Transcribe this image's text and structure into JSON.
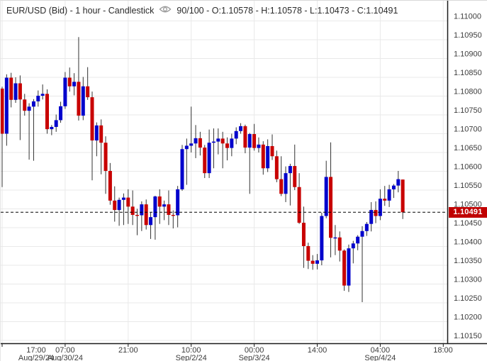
{
  "title": {
    "text": "EUR/USD (Bid) - 1 hour - Candlestick",
    "stats": "90/100 - O:1.10578 - H:1.10578 - L:1.10473 - C:1.10491",
    "eye_icon": "visibility-eye"
  },
  "colors": {
    "up": "#0202cc",
    "down": "#c80000",
    "wick": "#333333",
    "grid": "#e9e9e9",
    "axis": "#1a1a1a",
    "tick_text": "#3c3c3c",
    "tag_bg": "#c00000",
    "tag_text": "#ffffff",
    "dashed_line": "#000000"
  },
  "chart_data": {
    "type": "candlestick",
    "instrument": "EUR/USD (Bid)",
    "timeframe": "1 hour",
    "visible_counter": "90/100",
    "last_ohlc": {
      "open": 1.10578,
      "high": 1.10578,
      "low": 1.10473,
      "close": 1.10491
    },
    "price_marker": {
      "value": 1.10491,
      "label": "1.10491"
    },
    "ylim": [
      1.1015,
      1.11
    ],
    "grid": true,
    "y_ticks": [
      "1.11000",
      "1.10950",
      "1.10900",
      "1.10850",
      "1.10800",
      "1.10750",
      "1.10700",
      "1.10650",
      "1.10600",
      "1.10550",
      "1.10500",
      "1.10450",
      "1.10400",
      "1.10350",
      "1.10300",
      "1.10250",
      "1.10200",
      "1.10150"
    ],
    "x_ticks": [
      {
        "slot": 0,
        "time": "17:00",
        "date": "Aug/29/24"
      },
      {
        "slot": 14,
        "time": "07:00",
        "date": "Aug/30/24"
      },
      {
        "slot": 28,
        "time": "21:00",
        "date": ""
      },
      {
        "slot": 42,
        "time": "10:00",
        "date": "Sep/2/24"
      },
      {
        "slot": 56,
        "time": "00:00",
        "date": "Sep/3/24"
      },
      {
        "slot": 70,
        "time": "14:00",
        "date": ""
      },
      {
        "slot": 84,
        "time": "04:00",
        "date": "Sep/4/24"
      },
      {
        "slot": 98,
        "time": "18:00",
        "date": ""
      }
    ],
    "total_slots": 100,
    "candles_ohlc": [
      [
        1.1082,
        1.10825,
        1.10558,
        1.107
      ],
      [
        1.107,
        1.10858,
        1.10668,
        1.10849
      ],
      [
        1.10849,
        1.10862,
        1.1077,
        1.1079
      ],
      [
        1.1079,
        1.1085,
        1.10782,
        1.10834
      ],
      [
        1.10834,
        1.10855,
        1.10683,
        1.10791
      ],
      [
        1.10791,
        1.10806,
        1.10748,
        1.10761
      ],
      [
        1.10761,
        1.10781,
        1.10631,
        1.10772
      ],
      [
        1.10772,
        1.10792,
        1.10628,
        1.10786
      ],
      [
        1.10786,
        1.10815,
        1.10772,
        1.10801
      ],
      [
        1.10801,
        1.10831,
        1.10791,
        1.10806
      ],
      [
        1.10806,
        1.10818,
        1.107,
        1.10712
      ],
      [
        1.10712,
        1.10723,
        1.10696,
        1.10718
      ],
      [
        1.10718,
        1.10751,
        1.10705,
        1.10736
      ],
      [
        1.10736,
        1.10785,
        1.10729,
        1.10773
      ],
      [
        1.10773,
        1.10864,
        1.10766,
        1.10849
      ],
      [
        1.10849,
        1.10876,
        1.10812,
        1.10826
      ],
      [
        1.10826,
        1.10861,
        1.10802,
        1.10838
      ],
      [
        1.10838,
        1.10957,
        1.10735,
        1.10748
      ],
      [
        1.10748,
        1.10851,
        1.10736,
        1.10826
      ],
      [
        1.10826,
        1.10877,
        1.1079,
        1.10797
      ],
      [
        1.10797,
        1.10812,
        1.10576,
        1.10682
      ],
      [
        1.10682,
        1.1073,
        1.1064,
        1.10722
      ],
      [
        1.10722,
        1.10738,
        1.10592,
        1.10676
      ],
      [
        1.10676,
        1.10693,
        1.1054,
        1.10601
      ],
      [
        1.10601,
        1.10622,
        1.10511,
        1.10522
      ],
      [
        1.10522,
        1.1056,
        1.10466,
        1.10497
      ],
      [
        1.10497,
        1.1053,
        1.10455,
        1.10524
      ],
      [
        1.10524,
        1.10541,
        1.10457,
        1.1053
      ],
      [
        1.1053,
        1.10552,
        1.1046,
        1.10506
      ],
      [
        1.10506,
        1.10549,
        1.10457,
        1.10484
      ],
      [
        1.10484,
        1.105,
        1.1043,
        1.10483
      ],
      [
        1.10483,
        1.1052,
        1.10441,
        1.10512
      ],
      [
        1.10512,
        1.10525,
        1.10445,
        1.10457
      ],
      [
        1.10457,
        1.1049,
        1.1042,
        1.10478
      ],
      [
        1.10478,
        1.10535,
        1.10418,
        1.10533
      ],
      [
        1.10533,
        1.10552,
        1.1046,
        1.10506
      ],
      [
        1.10506,
        1.10522,
        1.1047,
        1.10512
      ],
      [
        1.10512,
        1.10549,
        1.10457,
        1.10484
      ],
      [
        1.10484,
        1.10496,
        1.10448,
        1.10483
      ],
      [
        1.10483,
        1.10561,
        1.10451,
        1.10552
      ],
      [
        1.10552,
        1.1067,
        1.10548,
        1.10659
      ],
      [
        1.10659,
        1.10687,
        1.10564,
        1.10668
      ],
      [
        1.10668,
        1.10772,
        1.1065,
        1.10674
      ],
      [
        1.10674,
        1.10723,
        1.10635,
        1.10688
      ],
      [
        1.10688,
        1.10705,
        1.10642,
        1.10663
      ],
      [
        1.10663,
        1.1067,
        1.10582,
        1.10595
      ],
      [
        1.10595,
        1.10711,
        1.10582,
        1.10676
      ],
      [
        1.10676,
        1.10714,
        1.10608,
        1.10679
      ],
      [
        1.10679,
        1.10714,
        1.10645,
        1.10687
      ],
      [
        1.10687,
        1.10705,
        1.10608,
        1.10674
      ],
      [
        1.10674,
        1.1069,
        1.10629,
        1.10662
      ],
      [
        1.10662,
        1.107,
        1.1064,
        1.10687
      ],
      [
        1.10687,
        1.10717,
        1.10672,
        1.10707
      ],
      [
        1.10707,
        1.10728,
        1.107,
        1.1072
      ],
      [
        1.1072,
        1.10724,
        1.10648,
        1.10663
      ],
      [
        1.10663,
        1.10702,
        1.1054,
        1.10699
      ],
      [
        1.10699,
        1.10726,
        1.10655,
        1.10662
      ],
      [
        1.10662,
        1.1069,
        1.1065,
        1.10671
      ],
      [
        1.10671,
        1.1068,
        1.10591,
        1.10608
      ],
      [
        1.10608,
        1.10685,
        1.10598,
        1.10667
      ],
      [
        1.10667,
        1.10698,
        1.1063,
        1.1064
      ],
      [
        1.1064,
        1.10655,
        1.10571,
        1.10579
      ],
      [
        1.10579,
        1.1064,
        1.10534,
        1.1054
      ],
      [
        1.1054,
        1.10613,
        1.10518,
        1.10595
      ],
      [
        1.10595,
        1.1062,
        1.10509,
        1.10614
      ],
      [
        1.10614,
        1.10671,
        1.1055,
        1.10558
      ],
      [
        1.10558,
        1.10595,
        1.1046,
        1.10463
      ],
      [
        1.10463,
        1.10506,
        1.10343,
        1.10401
      ],
      [
        1.10401,
        1.1041,
        1.1034,
        1.10362
      ],
      [
        1.10362,
        1.10377,
        1.10338,
        1.10354
      ],
      [
        1.10354,
        1.1038,
        1.10339,
        1.10363
      ],
      [
        1.10363,
        1.1049,
        1.1035,
        1.10481
      ],
      [
        1.10481,
        1.10628,
        1.10475,
        1.10585
      ],
      [
        1.10585,
        1.10677,
        1.10371,
        1.10423
      ],
      [
        1.10423,
        1.10457,
        1.10377,
        1.10424
      ],
      [
        1.10424,
        1.1044,
        1.1036,
        1.10389
      ],
      [
        1.10389,
        1.10392,
        1.10282,
        1.10296
      ],
      [
        1.10296,
        1.10405,
        1.10279,
        1.10395
      ],
      [
        1.10395,
        1.10415,
        1.10355,
        1.10408
      ],
      [
        1.10408,
        1.1043,
        1.1039,
        1.10426
      ],
      [
        1.10426,
        1.10454,
        1.10252,
        1.10441
      ],
      [
        1.10441,
        1.10465,
        1.10428,
        1.1046
      ],
      [
        1.1046,
        1.10518,
        1.1044,
        1.10497
      ],
      [
        1.10497,
        1.1052,
        1.10462,
        1.10481
      ],
      [
        1.10481,
        1.10552,
        1.1047,
        1.10527
      ],
      [
        1.10527,
        1.10561,
        1.10508,
        1.10522
      ],
      [
        1.10522,
        1.10564,
        1.10505,
        1.10552
      ],
      [
        1.10552,
        1.10566,
        1.10529,
        1.10562
      ],
      [
        1.10562,
        1.10601,
        1.10544,
        1.10579
      ],
      [
        1.10578,
        1.10578,
        1.10473,
        1.10491
      ]
    ]
  }
}
